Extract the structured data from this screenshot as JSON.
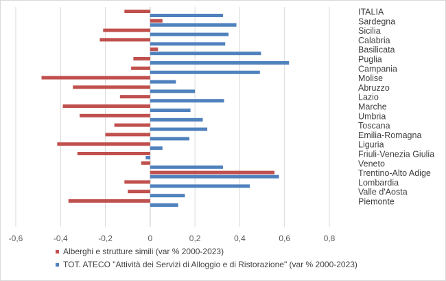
{
  "chart_data": {
    "type": "bar",
    "orientation": "horizontal",
    "categories": [
      "ITALIA",
      "Sardegna",
      "Sicilia",
      "Calabria",
      "Basilicata",
      "Puglia",
      "Campania",
      "Molise",
      "Abruzzo",
      "Lazio",
      "Marche",
      "Umbria",
      "Toscana",
      "Emilia-Romagna",
      "Liguria",
      "Friuli-Venezia Giulia",
      "Veneto",
      "Trentino-Alto Adige",
      "Lombardia",
      "Valle d'Aosta",
      "Piemonte"
    ],
    "series": [
      {
        "name": "Alberghi e strutture simili (var % 2000-2023)",
        "color": "#c0504d",
        "values": [
          -0.115,
          0.055,
          -0.21,
          -0.225,
          0.035,
          -0.075,
          -0.085,
          -0.485,
          -0.345,
          -0.135,
          -0.39,
          -0.315,
          -0.16,
          -0.2,
          -0.415,
          -0.325,
          -0.04,
          0.555,
          -0.115,
          -0.1,
          -0.365
        ]
      },
      {
        "name": "TOT. ATECO \"Attività dei Servizi di Alloggio e di Ristorazione\" (var % 2000-2023)",
        "color": "#4f81bd",
        "values": [
          0.325,
          0.385,
          0.35,
          0.335,
          0.495,
          0.62,
          0.49,
          0.115,
          0.2,
          0.33,
          0.18,
          0.235,
          0.255,
          0.175,
          0.055,
          -0.02,
          0.325,
          0.575,
          0.445,
          0.155,
          0.125
        ]
      }
    ],
    "xlim": [
      -0.6,
      0.8
    ],
    "xticks": [
      -0.6,
      -0.4,
      -0.2,
      0,
      0.2,
      0.4,
      0.6,
      0.8
    ],
    "xtick_labels": [
      "-0,6",
      "-0,4",
      "-0,2",
      "0",
      "0,2",
      "0,4",
      "0,6",
      "0,8"
    ],
    "gridlines": "vertical",
    "legend_position": "bottom"
  }
}
